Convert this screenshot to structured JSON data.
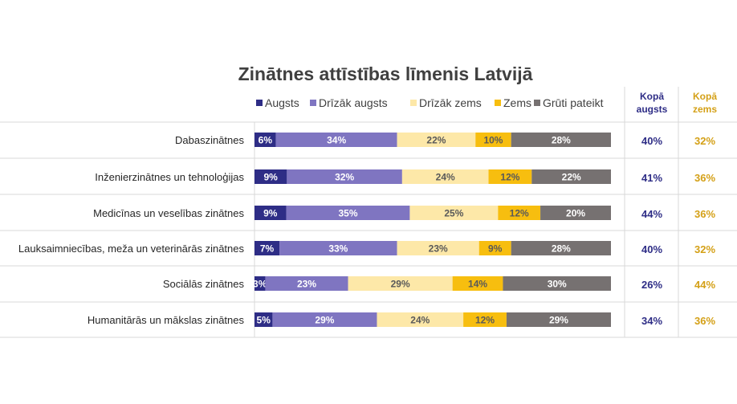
{
  "chart_data": {
    "type": "bar",
    "orientation": "horizontal",
    "stacked": true,
    "title": "Zinātnes attīstības līmenis Latvijā",
    "categories": [
      "Dabaszinātnes",
      "Inženierzinātnes un tehnoloģijas",
      "Medicīnas un veselības zinātnes",
      "Lauksaimniecības, meža un veterinārās zinātnes",
      "Sociālās zinātnes",
      "Humanitārās un mākslas zinātnes"
    ],
    "series": [
      {
        "name": "Augsts",
        "color": "#2e2d86",
        "label_color": "#ffffff",
        "values": [
          6,
          9,
          9,
          7,
          3,
          5
        ]
      },
      {
        "name": "Drīzāk augsts",
        "color": "#7f75c1",
        "label_color": "#ffffff",
        "values": [
          34,
          32,
          35,
          33,
          23,
          29
        ]
      },
      {
        "name": "Drīzāk zems",
        "color": "#fde8a8",
        "label_color": "#595959",
        "values": [
          22,
          24,
          25,
          23,
          29,
          24
        ]
      },
      {
        "name": "Zems",
        "color": "#f7be0f",
        "label_color": "#595959",
        "values": [
          10,
          12,
          12,
          9,
          14,
          12
        ]
      },
      {
        "name": "Grūti pateikt",
        "color": "#767171",
        "label_color": "#ffffff",
        "values": [
          28,
          22,
          20,
          28,
          30,
          29
        ]
      }
    ],
    "value_suffix": "%",
    "legend_position": "top",
    "totals": [
      {
        "header": [
          "Kopā",
          "augsts"
        ],
        "color": "#2e2d86",
        "values": [
          "40%",
          "41%",
          "44%",
          "40%",
          "26%",
          "34%"
        ]
      },
      {
        "header": [
          "Kopā",
          "zems"
        ],
        "color": "#d4a017",
        "values": [
          "32%",
          "36%",
          "36%",
          "32%",
          "44%",
          "36%"
        ]
      }
    ]
  }
}
